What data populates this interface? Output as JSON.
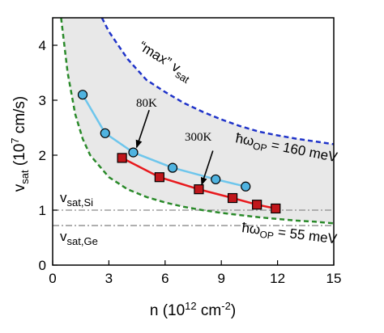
{
  "chart_data": {
    "type": "line",
    "xlabel": "n (10",
    "xlabel_exp": "12",
    "xlabel_unit": " cm",
    "xlabel_unit_exp": "-2",
    "xlabel_close": ")",
    "ylabel": "v",
    "ylabel_sub": "sat",
    "ylabel_mid": " (10",
    "ylabel_exp": "7",
    "ylabel_close": " cm/s)",
    "xlim": [
      0,
      15
    ],
    "ylim": [
      0,
      4.5
    ],
    "x_ticks": [
      "0",
      "3",
      "6",
      "9",
      "12",
      "15"
    ],
    "y_ticks": [
      "0",
      "1",
      "2",
      "3",
      "4"
    ],
    "x_tick_values": [
      0,
      3,
      6,
      9,
      12,
      15
    ],
    "y_tick_values": [
      0,
      1,
      2,
      3,
      4
    ],
    "grid": false,
    "series": [
      {
        "name": "80K",
        "color": "#6ec6ec",
        "marker": "circle",
        "marker_color": "#4fb3e0",
        "x": [
          1.6,
          2.8,
          4.3,
          6.4,
          8.7,
          10.3
        ],
        "y": [
          3.1,
          2.4,
          2.05,
          1.77,
          1.56,
          1.43
        ]
      },
      {
        "name": "300K",
        "color": "#e8191d",
        "marker": "square",
        "marker_color": "#c1161b",
        "x": [
          3.7,
          5.7,
          7.8,
          9.6,
          10.9,
          11.9
        ],
        "y": [
          1.95,
          1.6,
          1.38,
          1.22,
          1.1,
          1.03
        ]
      }
    ],
    "curves": [
      {
        "id": "max-vsat",
        "color": "#1f33c9",
        "style": "dashed",
        "label_parts": [
          "“max” v",
          "sat"
        ],
        "points": [
          [
            2.63,
            4.5
          ],
          [
            3,
            4.25
          ],
          [
            4,
            3.75
          ],
          [
            5,
            3.37
          ],
          [
            6,
            3.15
          ],
          [
            7,
            2.95
          ],
          [
            8,
            2.79
          ],
          [
            9,
            2.65
          ],
          [
            10,
            2.53
          ],
          [
            11,
            2.43
          ],
          [
            12,
            2.36
          ],
          [
            13,
            2.3
          ],
          [
            14,
            2.25
          ],
          [
            15,
            2.2
          ]
        ]
      },
      {
        "id": "op-55mev",
        "color": "#2a8a2a",
        "style": "dashed",
        "points": [
          [
            0.45,
            4.5
          ],
          [
            0.8,
            3.5
          ],
          [
            1.2,
            2.75
          ],
          [
            1.6,
            2.3
          ],
          [
            2,
            2.0
          ],
          [
            3,
            1.6
          ],
          [
            4,
            1.38
          ],
          [
            5,
            1.24
          ],
          [
            6,
            1.14
          ],
          [
            7,
            1.06
          ],
          [
            8,
            1.0
          ],
          [
            9,
            0.95
          ],
          [
            10,
            0.91
          ],
          [
            11,
            0.87
          ],
          [
            12,
            0.84
          ],
          [
            13,
            0.81
          ],
          [
            14,
            0.79
          ],
          [
            15,
            0.76
          ]
        ]
      }
    ],
    "reference_lines": [
      {
        "id": "vsat-si",
        "y": 1.0,
        "color": "#8a8a8a",
        "label_main": "v",
        "label_sub": "sat,Si"
      },
      {
        "id": "vsat-ge",
        "y": 0.72,
        "color": "#8a8a8a",
        "label_main": "v",
        "label_sub": "sat,Ge"
      }
    ],
    "shaded_region": {
      "between": [
        "max-vsat",
        "op-55mev"
      ],
      "color": "#e8e8e8"
    },
    "annotations": [
      {
        "id": "label-80k",
        "text": "80K",
        "x": 4.55,
        "y": 3.0
      },
      {
        "id": "label-300k",
        "text": "300K",
        "x": 7.1,
        "y": 2.3
      },
      {
        "id": "label-160mev",
        "hbar": "ħω",
        "sub": "OP",
        "rest": " = 160 meV",
        "x": 9.8,
        "y": 2.2
      },
      {
        "id": "label-55mev",
        "hbar": "ħω",
        "sub": "OP",
        "rest": " = 55 meV",
        "x": 10.2,
        "y": 0.45
      }
    ],
    "arrows": [
      {
        "id": "arrow-80k",
        "from": [
          5.15,
          2.82
        ],
        "to": [
          4.48,
          2.14
        ]
      },
      {
        "id": "arrow-300k",
        "from": [
          8.55,
          2.08
        ],
        "to": [
          7.95,
          1.46
        ]
      }
    ]
  }
}
